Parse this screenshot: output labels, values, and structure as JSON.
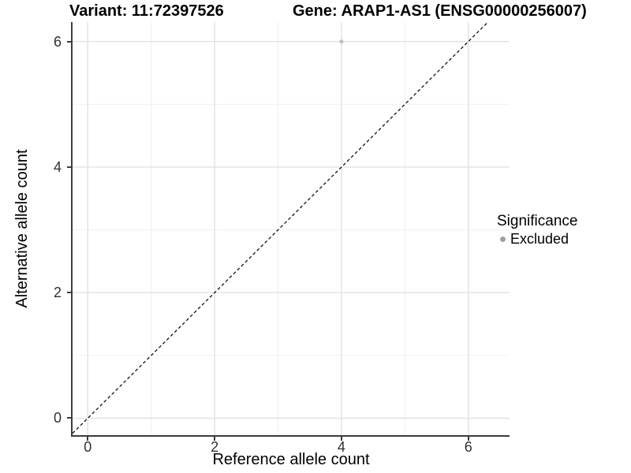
{
  "chart_data": {
    "type": "scatter",
    "title_left": "Variant: 11:72397526",
    "title_right": "Gene: ARAP1-AS1 (ENSG00000256007)",
    "xlabel": "Reference allele count",
    "ylabel": "Alternative allele count",
    "xlim": [
      -0.24,
      6.65
    ],
    "ylim": [
      -0.27,
      6.31
    ],
    "xticks": [
      0,
      2,
      4,
      6
    ],
    "yticks": [
      0,
      2,
      4,
      6
    ],
    "xticks_minor": [
      1,
      3,
      5
    ],
    "yticks_minor": [
      1,
      3,
      5
    ],
    "grid": "major+minor",
    "series": [
      {
        "name": "Excluded",
        "color": "#bfbfbf",
        "points": [
          {
            "x": 4,
            "y": 6
          }
        ]
      }
    ],
    "reference_line": {
      "type": "identity",
      "slope": 1,
      "intercept": 0,
      "linestyle": "dashed",
      "color": "#000000"
    },
    "legend": {
      "title": "Significance",
      "position": "right",
      "entries": [
        {
          "label": "Excluded",
          "color": "#a0a0a0"
        }
      ]
    },
    "colors": {
      "grid_major": "#e2e2e2",
      "grid_minor": "#f0f0f0",
      "axis_line": "#3c3c3c",
      "tick_label": "#303030",
      "title": "#000000"
    }
  }
}
